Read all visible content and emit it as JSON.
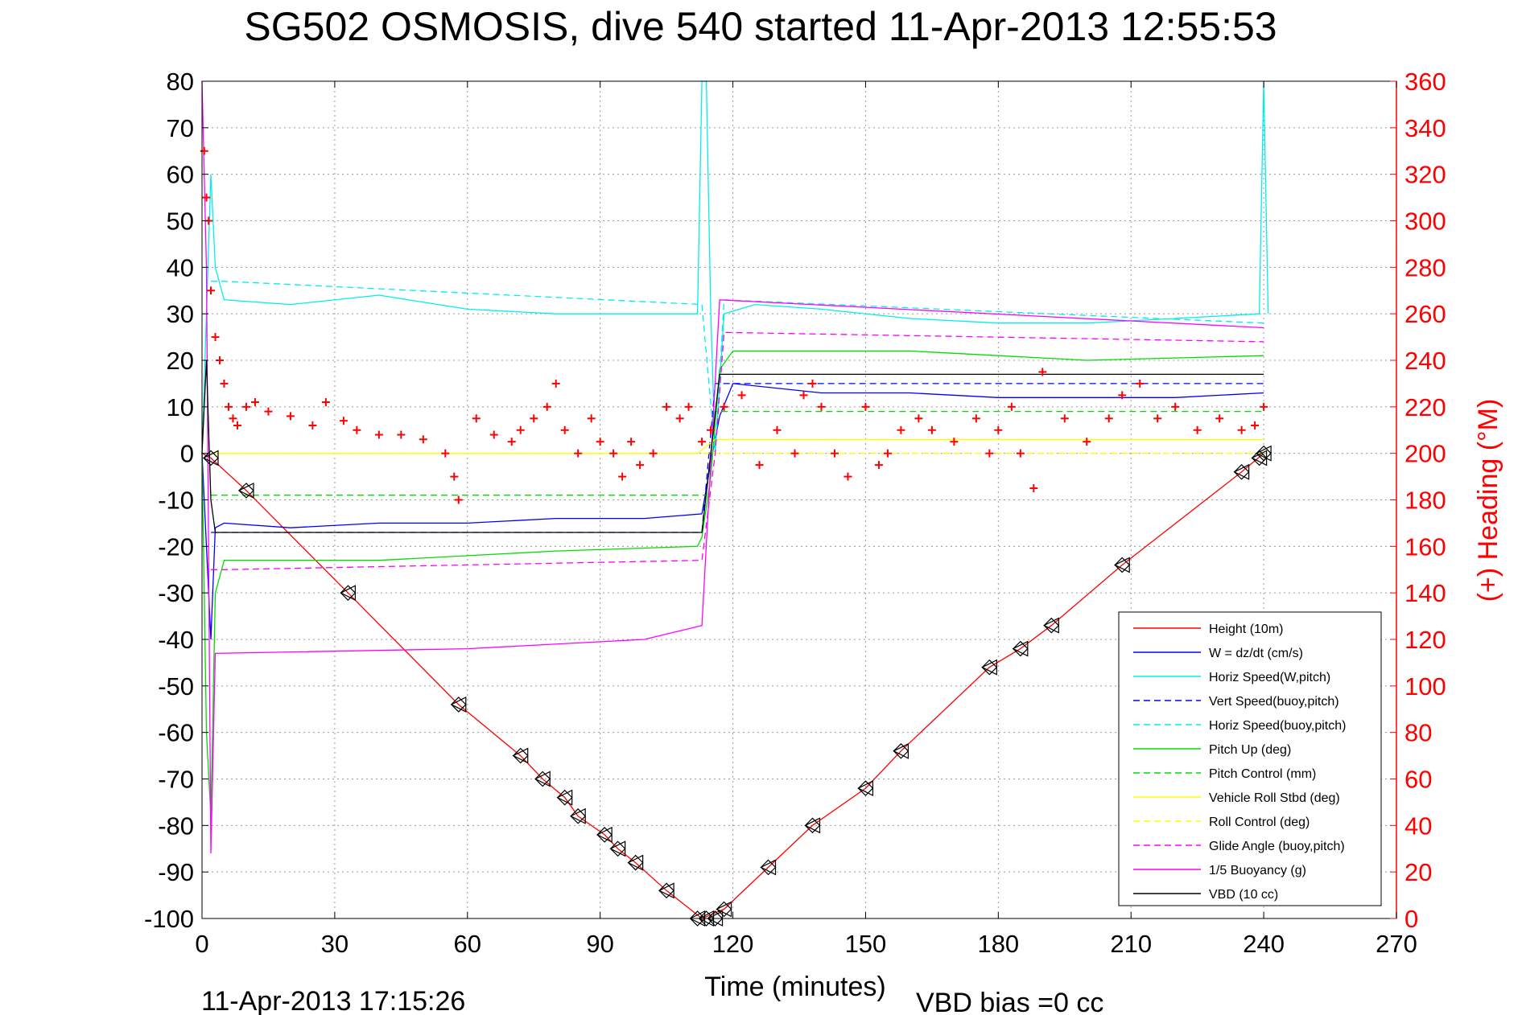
{
  "chart_data": {
    "type": "line",
    "title": "SG502 OSMOSIS, dive 540 started 11-Apr-2013 12:55:53",
    "xlabel": "Time (minutes)",
    "ylabel": "",
    "y2label": "(+) Heading (°M)",
    "footer_left": "11-Apr-2013 17:15:26",
    "footer_right": "VBD bias =0 cc",
    "xlim": [
      0,
      270
    ],
    "ylim": [
      -100,
      80
    ],
    "y2lim": [
      0,
      360
    ],
    "x_ticks": [
      "0",
      "30",
      "60",
      "90",
      "120",
      "150",
      "180",
      "210",
      "240",
      "270"
    ],
    "y_ticks": [
      "80",
      "70",
      "60",
      "50",
      "40",
      "30",
      "20",
      "10",
      "0",
      "-10",
      "-20",
      "-30",
      "-40",
      "-50",
      "-60",
      "-70",
      "-80",
      "-90",
      "-100"
    ],
    "y2_ticks": [
      "360",
      "340",
      "320",
      "300",
      "280",
      "260",
      "240",
      "220",
      "200",
      "180",
      "160",
      "140",
      "120",
      "100",
      "80",
      "60",
      "40",
      "20",
      "0"
    ],
    "grid": true,
    "legend_position": "bottom-right",
    "series": [
      {
        "name": "Height (10m)",
        "color": "#ff0000",
        "style": "solid",
        "x": [
          0,
          2,
          10,
          33,
          58,
          72,
          77,
          82,
          85,
          91,
          94,
          98,
          105,
          113,
          118,
          128,
          138,
          150,
          158,
          178,
          185,
          192,
          208,
          235,
          240
        ],
        "y": [
          0,
          -1,
          -8,
          -30,
          -54,
          -65,
          -70,
          -74,
          -78,
          -82,
          -85,
          -88,
          -94,
          -100,
          -98,
          -89,
          -80,
          -72,
          -64,
          -46,
          -42,
          -37,
          -24,
          -4,
          0
        ]
      },
      {
        "name": "W = dz/dt (cm/s)",
        "color": "#0000ff",
        "style": "solid",
        "x": [
          0,
          1,
          2,
          3,
          5,
          20,
          40,
          60,
          80,
          100,
          113,
          115,
          117,
          120,
          140,
          160,
          180,
          200,
          220,
          240
        ],
        "y": [
          0,
          -20,
          -40,
          -16,
          -15,
          -16,
          -15,
          -15,
          -14,
          -14,
          -13,
          -2,
          8,
          15,
          13,
          13,
          12,
          12,
          12,
          13
        ]
      },
      {
        "name": "Horiz Speed(W,pitch)",
        "color": "#00eeee",
        "style": "solid",
        "x": [
          0,
          2,
          3,
          5,
          20,
          40,
          60,
          80,
          100,
          112,
          113,
          114,
          115,
          116,
          118,
          125,
          140,
          160,
          180,
          200,
          220,
          239,
          240,
          241
        ],
        "y": [
          0,
          60,
          40,
          33,
          32,
          34,
          31,
          30,
          30,
          30,
          80,
          80,
          30,
          0,
          30,
          32,
          31,
          29,
          28,
          28,
          29,
          30,
          80,
          30
        ]
      },
      {
        "name": "Vert Speed(buoy,pitch)",
        "color": "#0000ff",
        "style": "dashed",
        "x": [
          2,
          113,
          116,
          240
        ],
        "y": [
          -17,
          -17,
          15,
          15
        ]
      },
      {
        "name": "Horiz Speed(buoy,pitch)",
        "color": "#00eeee",
        "style": "dashed",
        "x": [
          2,
          5,
          113,
          116,
          118,
          240
        ],
        "y": [
          37,
          37,
          32,
          0,
          33,
          28
        ]
      },
      {
        "name": "Pitch Up (deg)",
        "color": "#00dd00",
        "style": "solid",
        "x": [
          0,
          1,
          2,
          3,
          5,
          40,
          80,
          112,
          113,
          115,
          117,
          120,
          160,
          200,
          240
        ],
        "y": [
          0,
          -60,
          -78,
          -30,
          -23,
          -23,
          -21,
          -20,
          -18,
          -5,
          18,
          22,
          22,
          20,
          21
        ]
      },
      {
        "name": "Pitch Control (mm)",
        "color": "#00dd00",
        "style": "dashed",
        "x": [
          2,
          114,
          116,
          240
        ],
        "y": [
          -9,
          -9,
          9,
          9
        ]
      },
      {
        "name": "Vehicle Roll Stbd (deg)",
        "color": "#ffff00",
        "style": "solid",
        "x": [
          2,
          112,
          116,
          240
        ],
        "y": [
          0,
          0,
          3,
          3
        ]
      },
      {
        "name": "Roll Control (deg)",
        "color": "#ffff00",
        "style": "dashed",
        "x": [
          2,
          240
        ],
        "y": [
          0,
          0
        ]
      },
      {
        "name": "Glide Angle (buoy,pitch)",
        "color": "#ff00ff",
        "style": "dashed",
        "x": [
          2,
          5,
          113,
          116,
          118,
          240
        ],
        "y": [
          -25,
          -25,
          -23,
          0,
          26,
          24
        ]
      },
      {
        "name": "1/5 Buoyancy (g)",
        "color": "#ff00ff",
        "style": "solid",
        "x": [
          0,
          1,
          2,
          3,
          60,
          100,
          113,
          117,
          240
        ],
        "y": [
          80,
          40,
          -86,
          -43,
          -42,
          -40,
          -37,
          33,
          27
        ]
      },
      {
        "name": "VBD (10 cc)",
        "color": "#000000",
        "style": "solid",
        "x": [
          0,
          1,
          2,
          3,
          113,
          117,
          240
        ],
        "y": [
          0,
          20,
          -10,
          -17,
          -17,
          17,
          17
        ]
      }
    ],
    "heading_series": {
      "name": "(+) Heading",
      "color": "#ff0000",
      "marker": "+",
      "x": [
        0.5,
        1,
        1.5,
        2,
        3,
        4,
        5,
        6,
        7,
        8,
        10,
        12,
        15,
        20,
        25,
        28,
        32,
        35,
        40,
        45,
        50,
        55,
        57,
        58,
        62,
        66,
        70,
        72,
        75,
        78,
        80,
        82,
        85,
        88,
        90,
        93,
        95,
        97,
        99,
        102,
        105,
        108,
        110,
        113,
        115,
        118,
        122,
        126,
        130,
        134,
        136,
        138,
        140,
        143,
        146,
        150,
        153,
        155,
        158,
        162,
        165,
        170,
        175,
        178,
        180,
        183,
        185,
        188,
        190,
        195,
        200,
        205,
        208,
        212,
        216,
        220,
        225,
        230,
        235,
        238,
        240
      ],
      "y": [
        330,
        310,
        300,
        270,
        250,
        240,
        230,
        220,
        215,
        212,
        220,
        222,
        218,
        216,
        212,
        222,
        214,
        210,
        208,
        208,
        206,
        200,
        190,
        180,
        215,
        208,
        205,
        210,
        215,
        220,
        230,
        210,
        200,
        215,
        205,
        200,
        190,
        205,
        195,
        200,
        220,
        215,
        220,
        205,
        210,
        220,
        225,
        195,
        210,
        200,
        225,
        230,
        220,
        200,
        190,
        220,
        195,
        200,
        210,
        215,
        210,
        205,
        215,
        200,
        210,
        220,
        200,
        185,
        235,
        215,
        205,
        215,
        225,
        230,
        215,
        220,
        210,
        215,
        210,
        212,
        220
      ]
    },
    "height_markers": {
      "x": [
        2,
        10,
        33,
        58,
        72,
        77,
        82,
        85,
        91,
        94,
        98,
        105,
        112,
        114,
        116,
        118,
        128,
        138,
        150,
        158,
        178,
        185,
        192,
        208,
        235,
        239,
        240
      ],
      "y": [
        -1,
        -8,
        -30,
        -54,
        -65,
        -70,
        -74,
        -78,
        -82,
        -85,
        -88,
        -94,
        -100,
        -100,
        -100,
        -98,
        -89,
        -80,
        -72,
        -64,
        -46,
        -42,
        -37,
        -24,
        -4,
        -1,
        0
      ]
    }
  }
}
